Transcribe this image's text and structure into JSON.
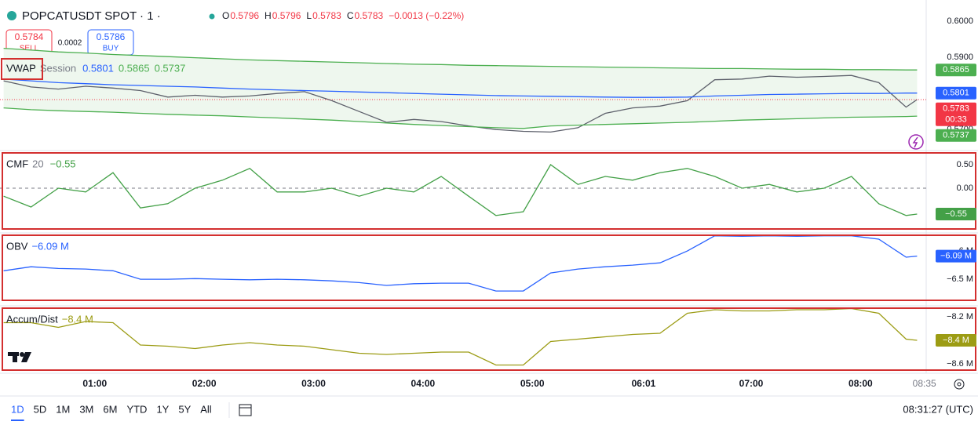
{
  "header": {
    "symbol": "POPCATUSDT SPOT · 1 ·",
    "ohlc": [
      {
        "key": "O",
        "value": 0.5796
      },
      {
        "key": "H",
        "value": 0.5796
      },
      {
        "key": "L",
        "value": 0.5783
      },
      {
        "key": "C",
        "value": 0.5783
      }
    ],
    "change": "−0.0013 (−0.22%)"
  },
  "trade": {
    "sell_price": "0.5784",
    "sell": "SELL",
    "spread": "0.0002",
    "buy_price": "0.5786",
    "buy": "BUY"
  },
  "countdown": "00:33",
  "toolbar": {
    "ranges": [
      "1D",
      "5D",
      "1M",
      "3M",
      "6M",
      "YTD",
      "1Y",
      "5Y",
      "All"
    ],
    "clock": "08:31:27 (UTC)"
  },
  "chart_data": [
    {
      "type": "line",
      "indicator": "VWAP",
      "setting": "Session",
      "band_fill": "#eef7ee",
      "x": [
        "00:10",
        "00:25",
        "00:40",
        "00:55",
        "01:10",
        "01:25",
        "01:40",
        "01:55",
        "02:10",
        "02:25",
        "02:40",
        "02:55",
        "03:10",
        "03:25",
        "03:40",
        "03:55",
        "04:10",
        "04:25",
        "04:40",
        "04:55",
        "05:10",
        "05:25",
        "05:40",
        "05:55",
        "06:10",
        "06:25",
        "06:40",
        "06:55",
        "07:10",
        "07:25",
        "07:40",
        "07:55",
        "08:10",
        "08:25",
        "08:31"
      ],
      "xlim": [
        "00:08",
        "08:36"
      ],
      "ylim": [
        0.5646,
        0.6059
      ],
      "yticks": [
        {
          "value": 0.6,
          "label": "0.6000"
        },
        {
          "value": 0.59,
          "label": "0.5900"
        },
        {
          "value": 0.57,
          "label": "0.5700"
        }
      ],
      "series": [
        {
          "color": "#5d606b",
          "tag_color": "#f23645",
          "values": [
            0.5835,
            0.5818,
            0.5812,
            0.582,
            0.5815,
            0.5808,
            0.579,
            0.5795,
            0.579,
            0.5793,
            0.58,
            0.5805,
            0.578,
            0.575,
            0.572,
            0.5728,
            0.5722,
            0.571,
            0.57,
            0.5695,
            0.5693,
            0.5705,
            0.5745,
            0.576,
            0.5765,
            0.578,
            0.5838,
            0.584,
            0.5848,
            0.5845,
            0.5847,
            0.585,
            0.583,
            0.5762,
            0.5783
          ]
        },
        {
          "color": "#2962ff",
          "values": [
            0.584,
            0.5835,
            0.583,
            0.5827,
            0.5824,
            0.5822,
            0.582,
            0.5818,
            0.5815,
            0.5812,
            0.581,
            0.5808,
            0.5806,
            0.5804,
            0.5802,
            0.58,
            0.5798,
            0.5796,
            0.5794,
            0.5793,
            0.5792,
            0.5791,
            0.579,
            0.5789,
            0.5789,
            0.579,
            0.5793,
            0.5795,
            0.5797,
            0.5798,
            0.5799,
            0.58,
            0.58,
            0.5801,
            0.5801
          ]
        },
        {
          "color": "#4caf50",
          "values": [
            0.5925,
            0.592,
            0.5915,
            0.5912,
            0.5908,
            0.5905,
            0.5902,
            0.5899,
            0.5896,
            0.5893,
            0.5891,
            0.5889,
            0.5887,
            0.5885,
            0.5883,
            0.5881,
            0.588,
            0.5878,
            0.5877,
            0.5876,
            0.5875,
            0.5874,
            0.5873,
            0.5872,
            0.5871,
            0.587,
            0.5869,
            0.5869,
            0.5868,
            0.5867,
            0.5867,
            0.5866,
            0.5866,
            0.5865,
            0.5865
          ]
        },
        {
          "color": "#4caf50",
          "values": [
            0.576,
            0.5755,
            0.5752,
            0.575,
            0.5748,
            0.5745,
            0.5742,
            0.574,
            0.5738,
            0.5735,
            0.5732,
            0.5729,
            0.5726,
            0.5722,
            0.5718,
            0.5714,
            0.5711,
            0.5708,
            0.5705,
            0.5703,
            0.571,
            0.5712,
            0.5714,
            0.5716,
            0.5718,
            0.572,
            0.5723,
            0.5726,
            0.5728,
            0.573,
            0.5732,
            0.5734,
            0.5735,
            0.5736,
            0.5737
          ]
        }
      ]
    },
    {
      "type": "line",
      "indicator": "CMF",
      "setting": "20",
      "baseline": 0,
      "x": [
        "00:10",
        "00:25",
        "00:40",
        "00:55",
        "01:10",
        "01:25",
        "01:40",
        "01:55",
        "02:10",
        "02:25",
        "02:40",
        "02:55",
        "03:10",
        "03:25",
        "03:40",
        "03:55",
        "04:10",
        "04:25",
        "04:40",
        "04:55",
        "05:10",
        "05:25",
        "05:40",
        "05:55",
        "06:10",
        "06:25",
        "06:40",
        "06:55",
        "07:10",
        "07:25",
        "07:40",
        "07:55",
        "08:10",
        "08:25",
        "08:31"
      ],
      "xlim": [
        "00:08",
        "08:36"
      ],
      "ylim": [
        -0.867,
        0.75
      ],
      "yticks": [
        {
          "value": 0.5,
          "label": "0.50"
        },
        {
          "value": 0,
          "label": "0.00"
        }
      ],
      "series": [
        {
          "color": "#43a047",
          "legend_value": "−0.55",
          "price_tag": "−0.55",
          "values": [
            -0.17,
            -0.4,
            0,
            -0.08,
            0.33,
            -0.42,
            -0.33,
            0,
            0.17,
            0.42,
            -0.08,
            -0.08,
            0,
            -0.17,
            0,
            -0.08,
            0.25,
            -0.17,
            -0.58,
            -0.5,
            0.5,
            0.08,
            0.25,
            0.17,
            0.33,
            0.42,
            0.25,
            0,
            0.08,
            -0.08,
            0,
            0.25,
            -0.33,
            -0.58,
            -0.55
          ]
        }
      ]
    },
    {
      "type": "line",
      "indicator": "OBV",
      "x": [
        "00:10",
        "00:25",
        "00:40",
        "00:55",
        "01:10",
        "01:25",
        "01:40",
        "01:55",
        "02:10",
        "02:25",
        "02:40",
        "02:55",
        "03:10",
        "03:25",
        "03:40",
        "03:55",
        "04:10",
        "04:25",
        "04:40",
        "04:55",
        "05:10",
        "05:25",
        "05:40",
        "05:55",
        "06:10",
        "06:25",
        "06:40",
        "06:55",
        "07:10",
        "07:25",
        "07:40",
        "07:55",
        "08:10",
        "08:25",
        "08:31"
      ],
      "xlim": [
        "00:08",
        "08:36"
      ],
      "ylim": [
        -6.875,
        -5.72
      ],
      "yticks": [
        {
          "value": -6,
          "label": "−6 M"
        },
        {
          "value": -6.5,
          "label": "−6.5 M"
        }
      ],
      "series": [
        {
          "color": "#2962ff",
          "legend_value": "−6.09 M",
          "price_tag": "−6.09 M",
          "values": [
            -6.35,
            -6.28,
            -6.31,
            -6.32,
            -6.35,
            -6.5,
            -6.5,
            -6.49,
            -6.5,
            -6.51,
            -6.5,
            -6.51,
            -6.53,
            -6.56,
            -6.61,
            -6.58,
            -6.57,
            -6.57,
            -6.71,
            -6.71,
            -6.39,
            -6.32,
            -6.28,
            -6.25,
            -6.21,
            -6.0,
            -5.73,
            -5.74,
            -5.73,
            -5.74,
            -5.73,
            -5.73,
            -5.79,
            -6.11,
            -6.09
          ]
        }
      ]
    },
    {
      "type": "line",
      "indicator": "Accum/Dist",
      "x": [
        "00:10",
        "00:25",
        "00:40",
        "00:55",
        "01:10",
        "01:25",
        "01:40",
        "01:55",
        "02:10",
        "02:25",
        "02:40",
        "02:55",
        "03:10",
        "03:25",
        "03:40",
        "03:55",
        "04:10",
        "04:25",
        "04:40",
        "04:55",
        "05:10",
        "05:25",
        "05:40",
        "05:55",
        "06:10",
        "06:25",
        "06:40",
        "06:55",
        "07:10",
        "07:25",
        "07:40",
        "07:55",
        "08:10",
        "08:25",
        "08:31"
      ],
      "xlim": [
        "00:08",
        "08:36"
      ],
      "ylim": [
        -8.653,
        -8.127
      ],
      "yticks": [
        {
          "value": -8.2,
          "label": "−8.2 M"
        },
        {
          "value": -8.6,
          "label": "−8.6 M"
        }
      ],
      "xticks": [
        "01:00",
        "02:00",
        "03:00",
        "04:00",
        "05:00",
        "06:01",
        "07:00",
        "08:00",
        "08:35"
      ],
      "series": [
        {
          "color": "#9c9c14",
          "legend_value": "−8.4 M",
          "price_tag": "−8.4 M",
          "values": [
            -8.25,
            -8.25,
            -8.29,
            -8.24,
            -8.25,
            -8.44,
            -8.45,
            -8.47,
            -8.44,
            -8.42,
            -8.44,
            -8.45,
            -8.48,
            -8.51,
            -8.52,
            -8.51,
            -8.5,
            -8.5,
            -8.61,
            -8.61,
            -8.41,
            -8.39,
            -8.37,
            -8.35,
            -8.34,
            -8.17,
            -8.14,
            -8.15,
            -8.15,
            -8.14,
            -8.14,
            -8.13,
            -8.17,
            -8.39,
            -8.4
          ]
        }
      ]
    }
  ]
}
